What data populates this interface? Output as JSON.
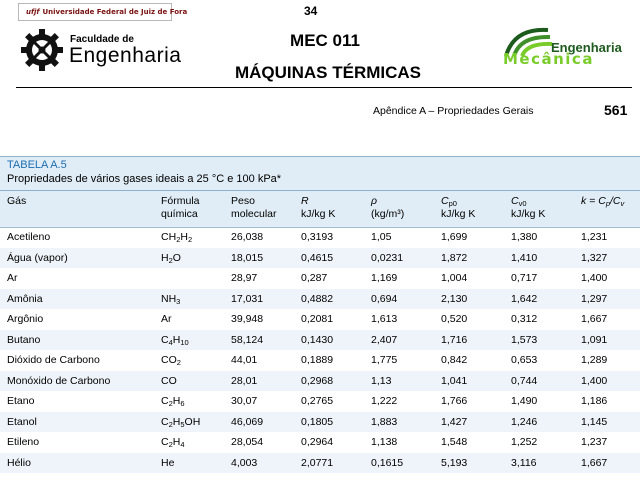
{
  "header": {
    "university": "Universidade Federal de Juiz de Fora",
    "ufjf_mark": "ufjf",
    "page_top": "34",
    "faculty_small": "Faculdade de",
    "faculty_big": "Engenharia",
    "course": "MEC 011",
    "subject": "MÁQUINAS TÉRMICAS",
    "mec_logo_line1": "Engenharia",
    "mec_logo_line2": "Mecânica"
  },
  "page": {
    "appendix": "Apêndice A – Propriedades Gerais",
    "number": "561"
  },
  "table": {
    "title": "TABELA A.5",
    "caption": "Propriedades de vários gases ideais a 25 °C e 100 kPa*",
    "headers": {
      "gas": "Gás",
      "formula_1": "Fórmula",
      "formula_2": "química",
      "weight_1": "Peso",
      "weight_2": "molecular",
      "r_1": "R",
      "r_2": "kJ/kg K",
      "rho_1": "ρ",
      "rho_2": "(kg/m³)",
      "cp_1": "C",
      "cp_sub": "p0",
      "cp_2": "kJ/kg K",
      "cv_1": "C",
      "cv_sub": "v0",
      "cv_2": "kJ/kg K",
      "k_1": "k = C",
      "k_sub1": "p",
      "k_mid": "/C",
      "k_sub2": "v"
    },
    "rows": [
      {
        "gas": "Acetileno",
        "formula": [
          [
            "C",
            ""
          ],
          [
            "H",
            "2"
          ],
          [
            "H",
            "2"
          ]
        ],
        "mw": "26,038",
        "r": "0,3193",
        "rho": "1,05",
        "cp": "1,699",
        "cv": "1,380",
        "k": "1,231"
      },
      {
        "gas": "Água (vapor)",
        "formula": [
          [
            "H",
            "2"
          ],
          [
            "O",
            ""
          ]
        ],
        "mw": "18,015",
        "r": "0,4615",
        "rho": "0,0231",
        "cp": "1,872",
        "cv": "1,410",
        "k": "1,327"
      },
      {
        "gas": "Ar",
        "formula": [],
        "mw": "28,97",
        "r": "0,287",
        "rho": "1,169",
        "cp": "1,004",
        "cv": "0,717",
        "k": "1,400"
      },
      {
        "gas": "Amônia",
        "formula": [
          [
            "NH",
            "3"
          ]
        ],
        "mw": "17,031",
        "r": "0,4882",
        "rho": "0,694",
        "cp": "2,130",
        "cv": "1,642",
        "k": "1,297"
      },
      {
        "gas": "Argônio",
        "formula": [
          [
            "Ar",
            ""
          ]
        ],
        "mw": "39,948",
        "r": "0,2081",
        "rho": "1,613",
        "cp": "0,520",
        "cv": "0,312",
        "k": "1,667"
      },
      {
        "gas": "Butano",
        "formula": [
          [
            "C",
            "4"
          ],
          [
            "H",
            "10"
          ]
        ],
        "mw": "58,124",
        "r": "0,1430",
        "rho": "2,407",
        "cp": "1,716",
        "cv": "1,573",
        "k": "1,091"
      },
      {
        "gas": "Dióxido de Carbono",
        "formula": [
          [
            "CO",
            "2"
          ]
        ],
        "mw": "44,01",
        "r": "0,1889",
        "rho": "1,775",
        "cp": "0,842",
        "cv": "0,653",
        "k": "1,289"
      },
      {
        "gas": "Monóxido de Carbono",
        "formula": [
          [
            "CO",
            ""
          ]
        ],
        "mw": "28,01",
        "r": "0,2968",
        "rho": "1,13",
        "cp": "1,041",
        "cv": "0,744",
        "k": "1,400"
      },
      {
        "gas": "Etano",
        "formula": [
          [
            "C",
            "2"
          ],
          [
            "H",
            "6"
          ]
        ],
        "mw": "30,07",
        "r": "0,2765",
        "rho": "1,222",
        "cp": "1,766",
        "cv": "1,490",
        "k": "1,186"
      },
      {
        "gas": "Etanol",
        "formula": [
          [
            "C",
            "2"
          ],
          [
            "H",
            "5"
          ],
          [
            "OH",
            ""
          ]
        ],
        "mw": "46,069",
        "r": "0,1805",
        "rho": "1,883",
        "cp": "1,427",
        "cv": "1,246",
        "k": "1,145"
      },
      {
        "gas": "Etileno",
        "formula": [
          [
            "C",
            "2"
          ],
          [
            "H",
            "4"
          ]
        ],
        "mw": "28,054",
        "r": "0,2964",
        "rho": "1,138",
        "cp": "1,548",
        "cv": "1,252",
        "k": "1,237"
      },
      {
        "gas": "Hélio",
        "formula": [
          [
            "He",
            ""
          ]
        ],
        "mw": "4,003",
        "r": "2,0771",
        "rho": "0,1615",
        "cp": "5,193",
        "cv": "3,116",
        "k": "1,667"
      }
    ]
  }
}
